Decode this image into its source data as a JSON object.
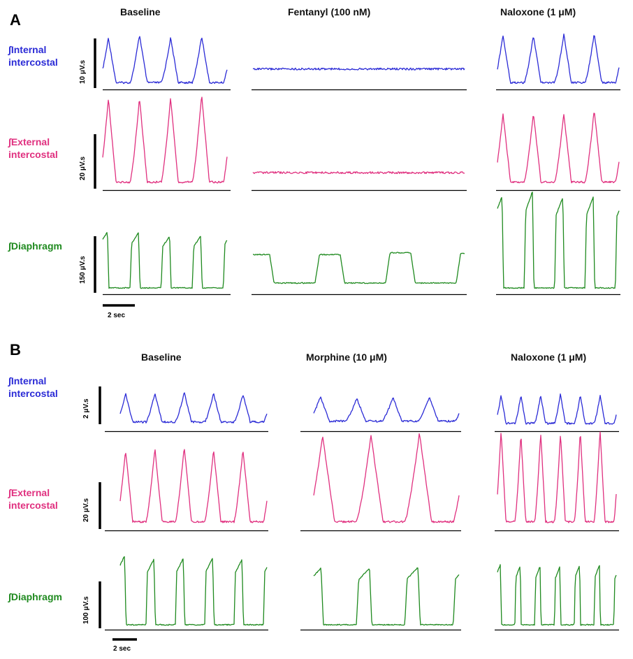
{
  "colors": {
    "internal_intercostal": "#2b2bd6",
    "external_intercostal": "#e0307f",
    "diaphragm": "#1f8a1f"
  },
  "panel_A": {
    "letter": "A",
    "conditions": [
      "Baseline",
      "Fentanyl (100 nM)",
      "Naloxone (1 μM)"
    ],
    "muscles": [
      "∫Internal\nintercostal",
      "∫External\nintercostal",
      "∫Diaphragm"
    ],
    "scale_bars": [
      "10 μV.s",
      "20 μV.s",
      "150 μV.s"
    ],
    "time_bar": "2 sec"
  },
  "panel_B": {
    "letter": "B",
    "conditions": [
      "Baseline",
      "Morphine (10 μM)",
      "Naloxone (1 μM)"
    ],
    "muscles": [
      "∫Internal\nintercostal",
      "∫External\nintercostal",
      "∫Diaphragm"
    ],
    "scale_bars": [
      "2 μV.s",
      "20 μV.s",
      "100 μV.s"
    ],
    "time_bar": "2 sec"
  },
  "chart_data": [
    {
      "type": "line",
      "panel": "A",
      "series": [
        {
          "muscle": "internal_intercostal",
          "condition": "Baseline",
          "bursts": 4,
          "relative_amplitude": 0.85,
          "relative_baseline": 0.1
        },
        {
          "muscle": "internal_intercostal",
          "condition": "Fentanyl (100 nM)",
          "bursts": 0,
          "relative_amplitude": 0.0,
          "relative_baseline": 0.35
        },
        {
          "muscle": "internal_intercostal",
          "condition": "Naloxone (1 μM)",
          "bursts": 4,
          "relative_amplitude": 0.9,
          "relative_baseline": 0.1
        },
        {
          "muscle": "external_intercostal",
          "condition": "Baseline",
          "bursts": 4,
          "relative_amplitude": 0.9,
          "relative_baseline": 0.07
        },
        {
          "muscle": "external_intercostal",
          "condition": "Fentanyl (100 nM)",
          "bursts": 0,
          "relative_amplitude": 0.0,
          "relative_baseline": 0.17
        },
        {
          "muscle": "external_intercostal",
          "condition": "Naloxone (1 μM)",
          "bursts": 4,
          "relative_amplitude": 0.75,
          "relative_baseline": 0.07
        },
        {
          "muscle": "diaphragm",
          "condition": "Baseline",
          "bursts": 4,
          "relative_amplitude": 0.55,
          "relative_baseline": 0.05
        },
        {
          "muscle": "diaphragm",
          "condition": "Fentanyl (100 nM)",
          "bursts": 3,
          "relative_amplitude": 0.3,
          "relative_baseline": 0.1
        },
        {
          "muscle": "diaphragm",
          "condition": "Naloxone (1 μM)",
          "bursts": 4,
          "relative_amplitude": 0.95,
          "relative_baseline": 0.05
        }
      ]
    },
    {
      "type": "line",
      "panel": "B",
      "series": [
        {
          "muscle": "internal_intercostal",
          "condition": "Baseline",
          "bursts": 5,
          "relative_amplitude": 0.65,
          "relative_baseline": 0.18
        },
        {
          "muscle": "internal_intercostal",
          "condition": "Morphine (10 μM)",
          "bursts": 4,
          "relative_amplitude": 0.55,
          "relative_baseline": 0.2
        },
        {
          "muscle": "internal_intercostal",
          "condition": "Naloxone (1 μM)",
          "bursts": 6,
          "relative_amplitude": 0.65,
          "relative_baseline": 0.15
        },
        {
          "muscle": "external_intercostal",
          "condition": "Baseline",
          "bursts": 5,
          "relative_amplitude": 0.8,
          "relative_baseline": 0.08
        },
        {
          "muscle": "external_intercostal",
          "condition": "Morphine (10 μM)",
          "bursts": 3,
          "relative_amplitude": 0.95,
          "relative_baseline": 0.08
        },
        {
          "muscle": "external_intercostal",
          "condition": "Naloxone (1 μM)",
          "bursts": 6,
          "relative_amplitude": 1.0,
          "relative_baseline": 0.08
        },
        {
          "muscle": "diaphragm",
          "condition": "Baseline",
          "bursts": 5,
          "relative_amplitude": 0.95,
          "relative_baseline": 0.05
        },
        {
          "muscle": "diaphragm",
          "condition": "Morphine (10 μM)",
          "bursts": 3,
          "relative_amplitude": 0.8,
          "relative_baseline": 0.05
        },
        {
          "muscle": "diaphragm",
          "condition": "Naloxone (1 μM)",
          "bursts": 6,
          "relative_amplitude": 0.85,
          "relative_baseline": 0.05
        }
      ]
    }
  ]
}
